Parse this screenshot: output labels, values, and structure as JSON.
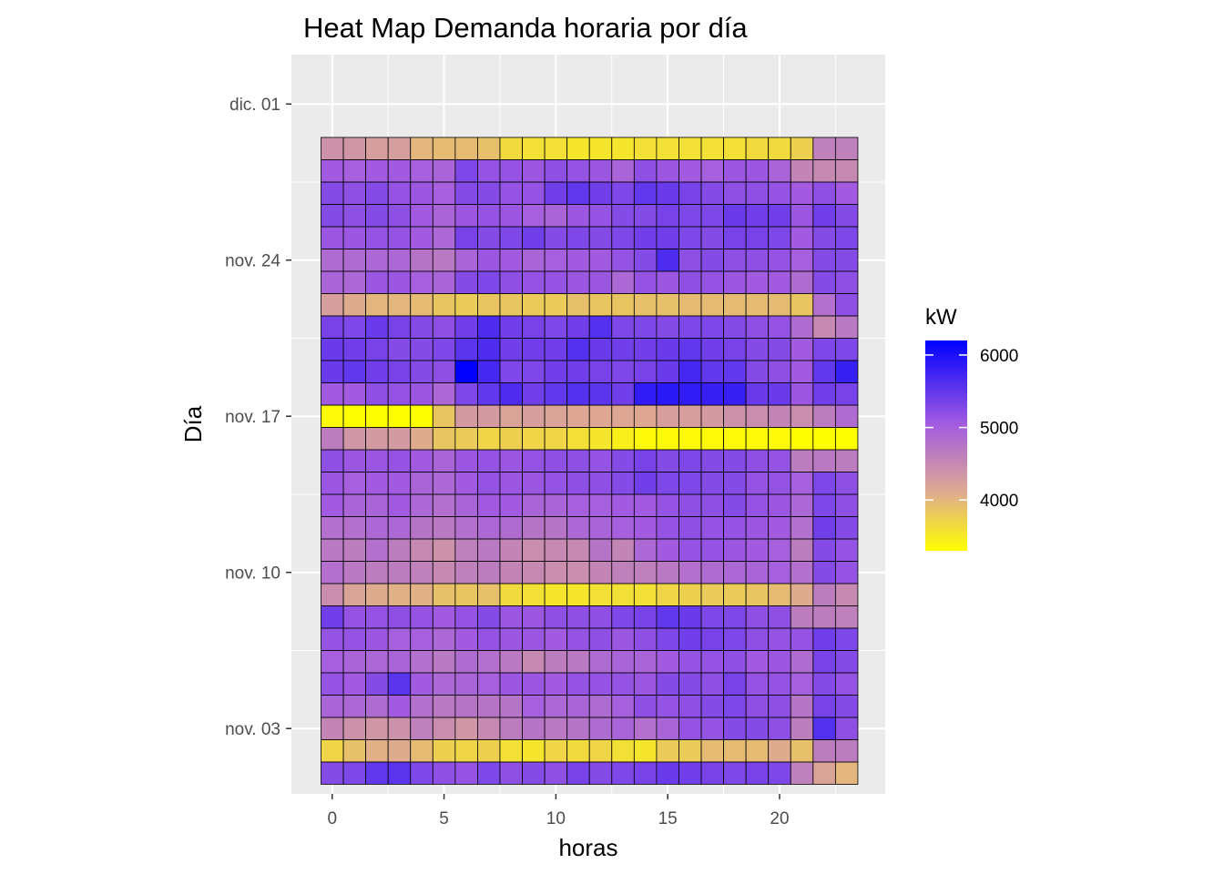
{
  "chart_data": {
    "type": "heatmap",
    "title": "Heat Map Demanda horaria por día",
    "xlabel": "horas",
    "ylabel": "Día",
    "x_range": [
      -0.5,
      23.5
    ],
    "x_ticks": [
      0,
      5,
      10,
      15,
      20
    ],
    "y_range": [
      "2020-11-01",
      "2020-12-01"
    ],
    "y_ticks": [
      {
        "label": "dic. 01",
        "day": 30
      },
      {
        "label": "nov. 24",
        "day": 23
      },
      {
        "label": "nov. 17",
        "day": 16
      },
      {
        "label": "nov. 10",
        "day": 9
      },
      {
        "label": "nov. 03",
        "day": 2
      }
    ],
    "grid": true,
    "legend": {
      "title": "kW",
      "position": "right",
      "min": 3300,
      "max": 6200,
      "ticks": [
        4000,
        5000,
        6000
      ],
      "colors": [
        "#ffff00",
        "#dfaa91",
        "#a35ce0",
        "#0000ff"
      ],
      "color_stops": [
        0,
        0.28,
        0.6,
        1
      ]
    },
    "rows": [
      {
        "date": "2020-11-01",
        "values": [
          5250,
          5300,
          5500,
          5550,
          5300,
          5200,
          5150,
          5300,
          5200,
          5250,
          5200,
          5350,
          5250,
          5300,
          5350,
          5450,
          5400,
          5350,
          5300,
          5350,
          5300,
          4600,
          4200,
          4000
        ]
      },
      {
        "date": "2020-11-02",
        "values": [
          3700,
          3900,
          4050,
          4100,
          3950,
          3750,
          3700,
          3750,
          3600,
          3550,
          3700,
          3650,
          3700,
          3600,
          3550,
          3800,
          3800,
          3950,
          3950,
          3950,
          4100,
          3900,
          4650,
          4650
        ]
      },
      {
        "date": "2020-11-03",
        "values": [
          4550,
          4400,
          4350,
          4400,
          4600,
          4450,
          4350,
          4500,
          4650,
          4750,
          4700,
          4750,
          4850,
          4950,
          4800,
          4950,
          5150,
          5150,
          5250,
          5250,
          5200,
          4650,
          5600,
          5200
        ]
      },
      {
        "date": "2020-11-04",
        "values": [
          4950,
          4900,
          4850,
          5050,
          4800,
          4700,
          4750,
          4750,
          4750,
          5000,
          4900,
          4950,
          4850,
          5000,
          5200,
          5150,
          5200,
          5250,
          5300,
          5200,
          5200,
          4750,
          5350,
          5250
        ]
      },
      {
        "date": "2020-11-05",
        "values": [
          5150,
          5050,
          5250,
          5550,
          5050,
          4900,
          4950,
          5000,
          5100,
          5100,
          5050,
          5150,
          5150,
          5150,
          5100,
          5250,
          5250,
          5200,
          5350,
          5150,
          5150,
          5000,
          5250,
          5150
        ]
      },
      {
        "date": "2020-11-06",
        "values": [
          5000,
          4950,
          4900,
          4950,
          4800,
          4700,
          4850,
          4800,
          4700,
          4500,
          4650,
          4700,
          4850,
          4950,
          4950,
          5050,
          5150,
          5150,
          5200,
          5050,
          5100,
          4850,
          5350,
          5250
        ]
      },
      {
        "date": "2020-11-07",
        "values": [
          5150,
          5150,
          5100,
          5000,
          5000,
          4900,
          5050,
          5150,
          5100,
          5100,
          5050,
          5150,
          5200,
          5100,
          5200,
          5300,
          5400,
          5350,
          5300,
          5200,
          5150,
          5150,
          5400,
          5300
        ]
      },
      {
        "date": "2020-11-08",
        "values": [
          5400,
          5150,
          5150,
          5200,
          5150,
          5050,
          5150,
          5250,
          5100,
          5100,
          5200,
          5200,
          5200,
          5300,
          5350,
          5500,
          5450,
          5300,
          5300,
          5200,
          5200,
          4650,
          4650,
          4600
        ]
      },
      {
        "date": "2020-11-09",
        "values": [
          4450,
          4200,
          4100,
          4050,
          4050,
          3900,
          3850,
          3900,
          3650,
          3600,
          3550,
          3550,
          3600,
          3600,
          3600,
          3700,
          3750,
          3800,
          3800,
          3850,
          3950,
          4100,
          4650,
          4500
        ]
      },
      {
        "date": "2020-11-10",
        "values": [
          4800,
          4700,
          4650,
          4650,
          4600,
          4500,
          4600,
          4650,
          4550,
          4500,
          4450,
          4450,
          4550,
          4600,
          4600,
          4700,
          4800,
          4850,
          4900,
          4950,
          5000,
          4800,
          5250,
          5150
        ]
      },
      {
        "date": "2020-11-11",
        "values": [
          4700,
          4650,
          4800,
          4650,
          4500,
          4400,
          4600,
          4700,
          4550,
          4450,
          4500,
          4500,
          4750,
          4550,
          4900,
          5050,
          5150,
          5150,
          5100,
          5050,
          5000,
          4650,
          5250,
          5150
        ]
      },
      {
        "date": "2020-11-12",
        "values": [
          4800,
          4800,
          4900,
          4900,
          4750,
          4700,
          4800,
          4900,
          4850,
          4750,
          4750,
          4900,
          4950,
          5000,
          5050,
          5150,
          5200,
          5150,
          5150,
          5100,
          5050,
          4800,
          5400,
          5250
        ]
      },
      {
        "date": "2020-11-13",
        "values": [
          5050,
          4950,
          4950,
          5050,
          4900,
          4800,
          4950,
          5050,
          5050,
          4950,
          4950,
          5000,
          5000,
          5050,
          5050,
          5150,
          5200,
          5200,
          5250,
          5150,
          5100,
          4900,
          5300,
          5200
        ]
      },
      {
        "date": "2020-11-14",
        "values": [
          5100,
          5000,
          5050,
          5050,
          4950,
          4900,
          5050,
          5150,
          5100,
          5100,
          5150,
          5200,
          5200,
          5250,
          5400,
          5300,
          5300,
          5250,
          5250,
          5150,
          5150,
          5000,
          5300,
          5200
        ]
      },
      {
        "date": "2020-11-15",
        "values": [
          5200,
          5100,
          5100,
          5150,
          5050,
          4950,
          5100,
          5150,
          5100,
          5150,
          5200,
          5200,
          5150,
          5250,
          5350,
          5250,
          5300,
          5250,
          5250,
          5200,
          5150,
          4650,
          4700,
          4650
        ]
      },
      {
        "date": "2020-11-16",
        "values": [
          4650,
          4350,
          4300,
          4300,
          4100,
          3850,
          3800,
          3700,
          3750,
          3700,
          3700,
          3600,
          3550,
          3450,
          3350,
          3350,
          3350,
          3350,
          3350,
          3350,
          3350,
          3300,
          3300,
          3300
        ]
      },
      {
        "date": "2020-11-17",
        "values": [
          3350,
          3300,
          3300,
          3300,
          3300,
          3850,
          4300,
          4300,
          4200,
          4250,
          4200,
          4150,
          4150,
          4150,
          4150,
          4250,
          4250,
          4300,
          4400,
          4450,
          4550,
          4450,
          4650,
          4850
        ]
      },
      {
        "date": "2020-11-18",
        "values": [
          5050,
          5050,
          5200,
          5150,
          5100,
          4900,
          5300,
          5500,
          5650,
          5400,
          5500,
          5600,
          5550,
          5400,
          5850,
          5900,
          5850,
          5800,
          5800,
          5450,
          5450,
          5100,
          5400,
          5350
        ]
      },
      {
        "date": "2020-11-19",
        "values": [
          5450,
          5500,
          5400,
          5350,
          5250,
          5200,
          6200,
          5700,
          5300,
          5300,
          5400,
          5400,
          5350,
          5300,
          5350,
          5450,
          5700,
          5500,
          5500,
          5250,
          5200,
          5050,
          5500,
          5800
        ]
      },
      {
        "date": "2020-11-20",
        "values": [
          5450,
          5400,
          5350,
          5250,
          5250,
          5300,
          5550,
          5650,
          5400,
          5400,
          5400,
          5600,
          5450,
          5400,
          5400,
          5450,
          5500,
          5400,
          5350,
          5250,
          5250,
          5050,
          5300,
          5300
        ]
      },
      {
        "date": "2020-11-21",
        "values": [
          5350,
          5300,
          5450,
          5350,
          5250,
          5200,
          5400,
          5650,
          5400,
          5350,
          5300,
          5400,
          5600,
          5300,
          5300,
          5250,
          5300,
          5300,
          5250,
          5200,
          5150,
          4850,
          4500,
          4700
        ]
      },
      {
        "date": "2020-11-22",
        "values": [
          4250,
          4100,
          4000,
          4000,
          3950,
          3850,
          3800,
          3850,
          3850,
          3800,
          3800,
          3900,
          3850,
          3850,
          3900,
          3900,
          3950,
          3950,
          3950,
          3950,
          3950,
          3850,
          4800,
          5200
        ]
      },
      {
        "date": "2020-11-23",
        "values": [
          4950,
          4900,
          5100,
          5100,
          5000,
          4950,
          5250,
          5300,
          5200,
          5150,
          5150,
          5100,
          5100,
          4900,
          5150,
          5100,
          5200,
          5150,
          5100,
          5050,
          5050,
          4850,
          5250,
          5200
        ]
      },
      {
        "date": "2020-11-24",
        "values": [
          4850,
          4850,
          4900,
          4900,
          4750,
          4700,
          4950,
          5100,
          5050,
          4950,
          5000,
          5050,
          5050,
          5150,
          5250,
          5650,
          5200,
          5250,
          5200,
          5200,
          5150,
          5000,
          5250,
          5250
        ]
      },
      {
        "date": "2020-11-25",
        "values": [
          5100,
          5100,
          5150,
          5150,
          5050,
          4900,
          5350,
          5250,
          5300,
          5400,
          5250,
          5300,
          5250,
          5300,
          5400,
          5400,
          5300,
          5250,
          5350,
          5350,
          5300,
          5050,
          5250,
          5300
        ]
      },
      {
        "date": "2020-11-26",
        "values": [
          5250,
          5200,
          5250,
          5200,
          5050,
          4950,
          5100,
          5150,
          5100,
          5000,
          4950,
          5100,
          5150,
          5250,
          5250,
          5350,
          5300,
          5300,
          5450,
          5400,
          5400,
          5100,
          5400,
          5250
        ]
      },
      {
        "date": "2020-11-27",
        "values": [
          5250,
          5200,
          5250,
          5150,
          5100,
          5000,
          5250,
          5250,
          5150,
          5150,
          5400,
          5500,
          5400,
          5300,
          5500,
          5450,
          5350,
          5250,
          5200,
          5200,
          5150,
          5050,
          5200,
          5050
        ]
      },
      {
        "date": "2020-11-28",
        "values": [
          5050,
          5000,
          5050,
          5050,
          5000,
          4950,
          5300,
          5150,
          5150,
          5100,
          5200,
          5150,
          5100,
          4950,
          5200,
          5100,
          5050,
          5000,
          5100,
          5100,
          4950,
          4550,
          4500,
          4500
        ]
      },
      {
        "date": "2020-11-29",
        "values": [
          4400,
          4350,
          4250,
          4250,
          4000,
          3950,
          3950,
          3900,
          3650,
          3600,
          3600,
          3550,
          3550,
          3550,
          3600,
          3600,
          3600,
          3600,
          3600,
          3650,
          3650,
          3750,
          4600,
          4600
        ]
      }
    ]
  }
}
